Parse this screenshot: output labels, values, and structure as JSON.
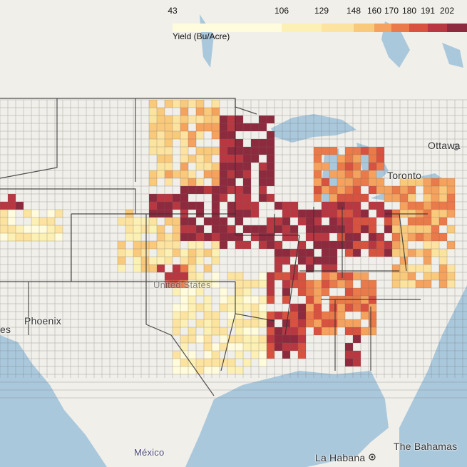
{
  "legend": {
    "title": "Yield (Bu/Acre)",
    "ticks": [
      "43",
      "106",
      "129",
      "148",
      "160",
      "170",
      "180",
      "191",
      "202"
    ],
    "colors": [
      "#fffbdc",
      "#fdf0b5",
      "#fce3a0",
      "#f9c97c",
      "#f4a25e",
      "#ea7a49",
      "#d8523f",
      "#b83741",
      "#8e2a3d"
    ]
  },
  "places": {
    "ottawa": "Ottawa",
    "toronto": "Toronto",
    "phoenix": "Phoenix",
    "united_states": "United States",
    "mexico": "México",
    "la_habana": "La Habana",
    "the_bahamas": "The Bahamas",
    "es": "es"
  },
  "colors": {
    "water": "#aac8dc",
    "land": "#f1efe9",
    "county_border": "#5a5a5a",
    "state_border": "#3a3a3a"
  },
  "icons": [
    "capital-star-icon"
  ]
}
